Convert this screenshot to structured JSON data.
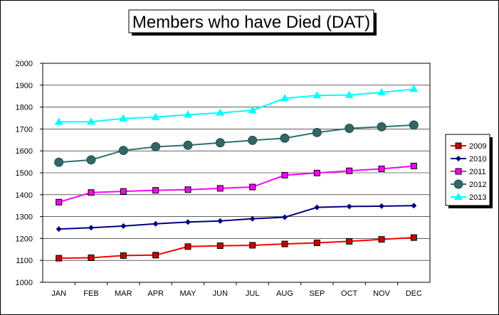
{
  "chart_data": {
    "type": "line",
    "title": "Members who have Died (DAT)",
    "xlabel": "",
    "ylabel": "",
    "categories": [
      "JAN",
      "FEB",
      "MAR",
      "APR",
      "MAY",
      "JUN",
      "JUL",
      "AUG",
      "SEP",
      "OCT",
      "NOV",
      "DEC"
    ],
    "ylim": [
      1000,
      2000
    ],
    "yticks": [
      1000,
      1100,
      1200,
      1300,
      1400,
      1500,
      1600,
      1700,
      1800,
      1900,
      2000
    ],
    "grid": "horizontal",
    "legend_position": "right",
    "series": [
      {
        "name": "2009",
        "color": "#ff0000",
        "marker": "square",
        "marker_color": "#cc0000",
        "values": [
          1110,
          1112,
          1122,
          1124,
          1163,
          1167,
          1169,
          1175,
          1180,
          1187,
          1196,
          1204
        ]
      },
      {
        "name": "2010",
        "color": "#000080",
        "marker": "diamond",
        "marker_color": "#000080",
        "values": [
          1243,
          1249,
          1257,
          1267,
          1275,
          1280,
          1290,
          1297,
          1342,
          1346,
          1348,
          1350
        ]
      },
      {
        "name": "2011",
        "color": "#ff00ff",
        "marker": "square",
        "marker_color": "#ff00ff",
        "values": [
          1366,
          1410,
          1415,
          1420,
          1423,
          1429,
          1435,
          1489,
          1499,
          1509,
          1518,
          1531
        ]
      },
      {
        "name": "2012",
        "color": "#2e7070",
        "marker": "circle",
        "marker_color": "#336666",
        "values": [
          1548,
          1559,
          1602,
          1619,
          1626,
          1637,
          1648,
          1658,
          1684,
          1703,
          1710,
          1718
        ]
      },
      {
        "name": "2013",
        "color": "#00ffff",
        "marker": "triangle",
        "marker_color": "#00ffff",
        "values": [
          1732,
          1733,
          1748,
          1754,
          1765,
          1774,
          1785,
          1840,
          1853,
          1855,
          1867,
          1882
        ]
      }
    ]
  }
}
